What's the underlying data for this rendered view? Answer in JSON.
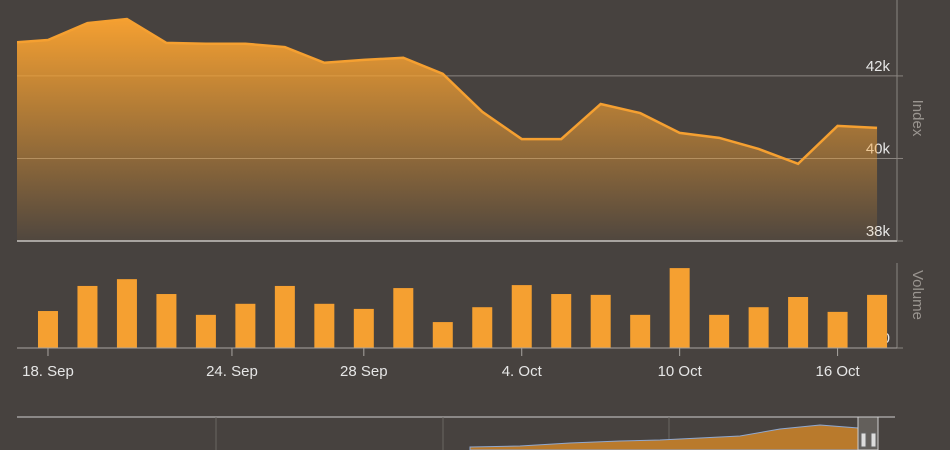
{
  "chart_data": [
    {
      "type": "area",
      "y_label": "Index",
      "color": "#f5a031",
      "values": [
        42800,
        42870,
        43280,
        43380,
        42800,
        42780,
        42780,
        42700,
        42320,
        42390,
        42440,
        42050,
        41130,
        40470,
        40470,
        41320,
        41100,
        40620,
        40500,
        40230,
        39870,
        40790,
        40740
      ],
      "xlim": [
        0.22,
        22.58
      ],
      "ylim": [
        38000,
        43840
      ],
      "yticks": [
        {
          "value": 38000,
          "label": "38k"
        },
        {
          "value": 40000,
          "label": "40k"
        },
        {
          "value": 42000,
          "label": "42k"
        }
      ],
      "grid": true
    },
    {
      "type": "bar",
      "y_label": "Volume",
      "color": "#f5a031",
      "values": [
        null,
        43.5,
        73,
        81,
        63.5,
        39,
        52,
        73,
        52,
        46,
        70.5,
        30.5,
        48,
        74,
        63.5,
        62.5,
        39,
        94,
        39,
        48,
        60,
        42.5,
        62.5
      ],
      "xlim": [
        0.22,
        22.58
      ],
      "ylim": [
        0,
        100
      ],
      "yticks": [
        0
      ],
      "xticks": [
        {
          "value": 1,
          "label": "18. Sep"
        },
        {
          "value": 5.66,
          "label": "24. Sep"
        },
        {
          "value": 9,
          "label": "28 Sep"
        },
        {
          "value": 13,
          "label": "4. Oct"
        },
        {
          "value": 17,
          "label": "10 Oct"
        },
        {
          "value": 21,
          "label": "16 Oct"
        }
      ]
    }
  ]
}
